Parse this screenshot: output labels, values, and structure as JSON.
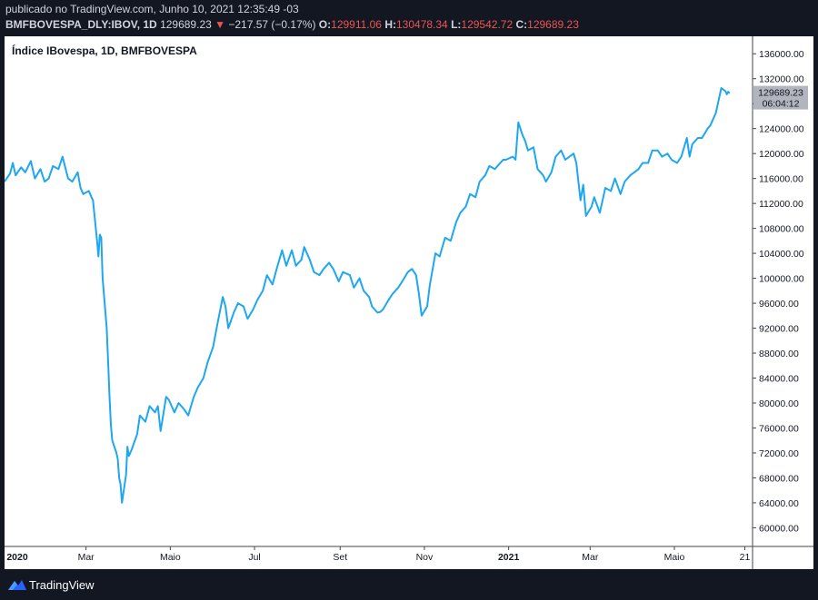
{
  "header": {
    "published": "publicado no TradingView.com, Junho 10, 2021 12:35:49 -03",
    "symbol": "BMFBOVESPA_DLY:IBOV, 1D",
    "last": "129689.23",
    "change_arrow": "▼",
    "change": "−217.57 (−0.17%)",
    "open_label": "O:",
    "open": "129911.06",
    "high_label": "H:",
    "high": "130478.34",
    "low_label": "L:",
    "low": "129542.72",
    "close_label": "C:",
    "close": "129689.23"
  },
  "footer": {
    "brand": "TradingView",
    "logo_icon": "tradingview-logo-icon"
  },
  "colors": {
    "line": "#1ea7f0",
    "down": "#ef5350",
    "badge": "#b2b5be",
    "background": "#131722"
  },
  "chart_data": {
    "type": "line",
    "title": "Índice IBovespa, 1D, BMFBOVESPA",
    "price_badge": {
      "value": "129689.23",
      "countdown": "06:04:12"
    },
    "x_tick_labels": [
      {
        "label": "2020",
        "date": "2020-01-01",
        "bold": true
      },
      {
        "label": "Mar",
        "date": "2020-03-01",
        "bold": false
      },
      {
        "label": "Maio",
        "date": "2020-05-01",
        "bold": false
      },
      {
        "label": "Jul",
        "date": "2020-07-01",
        "bold": false
      },
      {
        "label": "Set",
        "date": "2020-09-01",
        "bold": false
      },
      {
        "label": "Nov",
        "date": "2020-11-01",
        "bold": false
      },
      {
        "label": "2021",
        "date": "2021-01-01",
        "bold": true
      },
      {
        "label": "Mar",
        "date": "2021-03-01",
        "bold": false
      },
      {
        "label": "Maio",
        "date": "2021-05-01",
        "bold": false
      },
      {
        "label": "21",
        "date": "2021-06-21",
        "bold": false
      }
    ],
    "y_ticks": [
      60000,
      64000,
      68000,
      72000,
      76000,
      80000,
      84000,
      88000,
      92000,
      96000,
      100000,
      104000,
      108000,
      112000,
      116000,
      120000,
      124000,
      128000,
      132000,
      136000
    ],
    "y_tick_labels": [
      "60000.00",
      "64000.00",
      "68000.00",
      "72000.00",
      "76000.00",
      "80000.00",
      "84000.00",
      "88000.00",
      "92000.00",
      "96000.00",
      "100000.00",
      "104000.00",
      "108000.00",
      "112000.00",
      "116000.00",
      "120000.00",
      "124000.00",
      "128000.00",
      "132000.00",
      "136000.00"
    ],
    "ylim": [
      57000,
      138800
    ],
    "xlim": [
      "2020-01-02",
      "2021-06-22"
    ],
    "grid": false,
    "series": [
      {
        "points": [
          [
            "2020-01-02",
            115500
          ],
          [
            "2020-01-06",
            116800
          ],
          [
            "2020-01-08",
            118500
          ],
          [
            "2020-01-10",
            116500
          ],
          [
            "2020-01-14",
            117800
          ],
          [
            "2020-01-17",
            117000
          ],
          [
            "2020-01-21",
            118800
          ],
          [
            "2020-01-24",
            116000
          ],
          [
            "2020-01-28",
            117500
          ],
          [
            "2020-01-31",
            115500
          ],
          [
            "2020-02-03",
            116000
          ],
          [
            "2020-02-06",
            118000
          ],
          [
            "2020-02-10",
            117500
          ],
          [
            "2020-02-13",
            119500
          ],
          [
            "2020-02-17",
            116000
          ],
          [
            "2020-02-20",
            115500
          ],
          [
            "2020-02-24",
            117000
          ],
          [
            "2020-02-26",
            114500
          ],
          [
            "2020-02-28",
            113500
          ],
          [
            "2020-03-03",
            114000
          ],
          [
            "2020-03-05",
            113000
          ],
          [
            "2020-03-06",
            112500
          ],
          [
            "2020-03-09",
            106000
          ],
          [
            "2020-03-10",
            103500
          ],
          [
            "2020-03-11",
            107000
          ],
          [
            "2020-03-12",
            106500
          ],
          [
            "2020-03-13",
            100000
          ],
          [
            "2020-03-16",
            92000
          ],
          [
            "2020-03-17",
            86500
          ],
          [
            "2020-03-18",
            81000
          ],
          [
            "2020-03-19",
            76500
          ],
          [
            "2020-03-20",
            74000
          ],
          [
            "2020-03-23",
            72000
          ],
          [
            "2020-03-24",
            71000
          ],
          [
            "2020-03-25",
            68000
          ],
          [
            "2020-03-26",
            67000
          ],
          [
            "2020-03-27",
            64000
          ],
          [
            "2020-03-30",
            68500
          ],
          [
            "2020-03-31",
            73000
          ],
          [
            "2020-04-01",
            71500
          ],
          [
            "2020-04-03",
            72500
          ],
          [
            "2020-04-07",
            75000
          ],
          [
            "2020-04-09",
            78000
          ],
          [
            "2020-04-13",
            77000
          ],
          [
            "2020-04-16",
            79500
          ],
          [
            "2020-04-20",
            78500
          ],
          [
            "2020-04-22",
            79500
          ],
          [
            "2020-04-24",
            75500
          ],
          [
            "2020-04-28",
            81000
          ],
          [
            "2020-04-30",
            80500
          ],
          [
            "2020-05-04",
            78500
          ],
          [
            "2020-05-07",
            80000
          ],
          [
            "2020-05-11",
            79000
          ],
          [
            "2020-05-14",
            78000
          ],
          [
            "2020-05-18",
            81000
          ],
          [
            "2020-05-21",
            82500
          ],
          [
            "2020-05-25",
            84000
          ],
          [
            "2020-05-28",
            86500
          ],
          [
            "2020-06-01",
            89000
          ],
          [
            "2020-06-04",
            92500
          ],
          [
            "2020-06-08",
            97000
          ],
          [
            "2020-06-10",
            95500
          ],
          [
            "2020-06-12",
            92000
          ],
          [
            "2020-06-16",
            94500
          ],
          [
            "2020-06-19",
            96000
          ],
          [
            "2020-06-23",
            95500
          ],
          [
            "2020-06-26",
            93500
          ],
          [
            "2020-06-30",
            95000
          ],
          [
            "2020-07-03",
            96500
          ],
          [
            "2020-07-07",
            98000
          ],
          [
            "2020-07-10",
            100500
          ],
          [
            "2020-07-14",
            99000
          ],
          [
            "2020-07-17",
            101500
          ],
          [
            "2020-07-21",
            104500
          ],
          [
            "2020-07-24",
            102000
          ],
          [
            "2020-07-28",
            104500
          ],
          [
            "2020-07-31",
            102000
          ],
          [
            "2020-08-04",
            103000
          ],
          [
            "2020-08-06",
            105000
          ],
          [
            "2020-08-10",
            103000
          ],
          [
            "2020-08-13",
            101000
          ],
          [
            "2020-08-17",
            100500
          ],
          [
            "2020-08-20",
            101500
          ],
          [
            "2020-08-24",
            102500
          ],
          [
            "2020-08-27",
            101500
          ],
          [
            "2020-08-31",
            99500
          ],
          [
            "2020-09-03",
            101000
          ],
          [
            "2020-09-08",
            100500
          ],
          [
            "2020-09-11",
            98500
          ],
          [
            "2020-09-15",
            100000
          ],
          [
            "2020-09-18",
            98000
          ],
          [
            "2020-09-22",
            97000
          ],
          [
            "2020-09-24",
            95500
          ],
          [
            "2020-09-28",
            94500
          ],
          [
            "2020-09-30",
            94600
          ],
          [
            "2020-10-02",
            95000
          ],
          [
            "2020-10-06",
            96500
          ],
          [
            "2020-10-09",
            97500
          ],
          [
            "2020-10-13",
            98500
          ],
          [
            "2020-10-16",
            99500
          ],
          [
            "2020-10-20",
            101000
          ],
          [
            "2020-10-23",
            101500
          ],
          [
            "2020-10-26",
            100500
          ],
          [
            "2020-10-28",
            97500
          ],
          [
            "2020-10-30",
            94000
          ],
          [
            "2020-11-03",
            95500
          ],
          [
            "2020-11-05",
            99000
          ],
          [
            "2020-11-09",
            104000
          ],
          [
            "2020-11-12",
            103500
          ],
          [
            "2020-11-16",
            106500
          ],
          [
            "2020-11-20",
            106000
          ],
          [
            "2020-11-24",
            109000
          ],
          [
            "2020-11-27",
            110500
          ],
          [
            "2020-12-01",
            111500
          ],
          [
            "2020-12-04",
            113500
          ],
          [
            "2020-12-08",
            113000
          ],
          [
            "2020-12-11",
            115500
          ],
          [
            "2020-12-15",
            116500
          ],
          [
            "2020-12-18",
            118000
          ],
          [
            "2020-12-22",
            117500
          ],
          [
            "2020-12-28",
            119000
          ],
          [
            "2020-12-30",
            119000
          ],
          [
            "2021-01-04",
            119500
          ],
          [
            "2021-01-06",
            119000
          ],
          [
            "2021-01-08",
            125000
          ],
          [
            "2021-01-11",
            123000
          ],
          [
            "2021-01-13",
            122000
          ],
          [
            "2021-01-15",
            120500
          ],
          [
            "2021-01-19",
            121000
          ],
          [
            "2021-01-22",
            117500
          ],
          [
            "2021-01-26",
            116500
          ],
          [
            "2021-01-28",
            115500
          ],
          [
            "2021-02-01",
            117000
          ],
          [
            "2021-02-04",
            119500
          ],
          [
            "2021-02-08",
            120500
          ],
          [
            "2021-02-11",
            119000
          ],
          [
            "2021-02-17",
            120000
          ],
          [
            "2021-02-19",
            118500
          ],
          [
            "2021-02-22",
            112500
          ],
          [
            "2021-02-24",
            115000
          ],
          [
            "2021-02-26",
            110000
          ],
          [
            "2021-03-02",
            111500
          ],
          [
            "2021-03-04",
            113000
          ],
          [
            "2021-03-08",
            110500
          ],
          [
            "2021-03-10",
            112500
          ],
          [
            "2021-03-12",
            114500
          ],
          [
            "2021-03-16",
            114000
          ],
          [
            "2021-03-19",
            116000
          ],
          [
            "2021-03-23",
            113500
          ],
          [
            "2021-03-26",
            115500
          ],
          [
            "2021-03-30",
            116500
          ],
          [
            "2021-04-05",
            117500
          ],
          [
            "2021-04-08",
            118500
          ],
          [
            "2021-04-12",
            118500
          ],
          [
            "2021-04-15",
            120500
          ],
          [
            "2021-04-19",
            120500
          ],
          [
            "2021-04-22",
            119500
          ],
          [
            "2021-04-26",
            120000
          ],
          [
            "2021-04-29",
            119000
          ],
          [
            "2021-05-03",
            118500
          ],
          [
            "2021-05-06",
            119500
          ],
          [
            "2021-05-10",
            122500
          ],
          [
            "2021-05-12",
            119500
          ],
          [
            "2021-05-14",
            121500
          ],
          [
            "2021-05-18",
            122500
          ],
          [
            "2021-05-21",
            122500
          ],
          [
            "2021-05-25",
            124000
          ],
          [
            "2021-05-27",
            124500
          ],
          [
            "2021-05-31",
            126500
          ],
          [
            "2021-06-02",
            128500
          ],
          [
            "2021-06-04",
            130500
          ],
          [
            "2021-06-07",
            130000
          ],
          [
            "2021-06-08",
            129500
          ],
          [
            "2021-06-09",
            129900
          ],
          [
            "2021-06-10",
            129689.23
          ]
        ]
      }
    ]
  }
}
